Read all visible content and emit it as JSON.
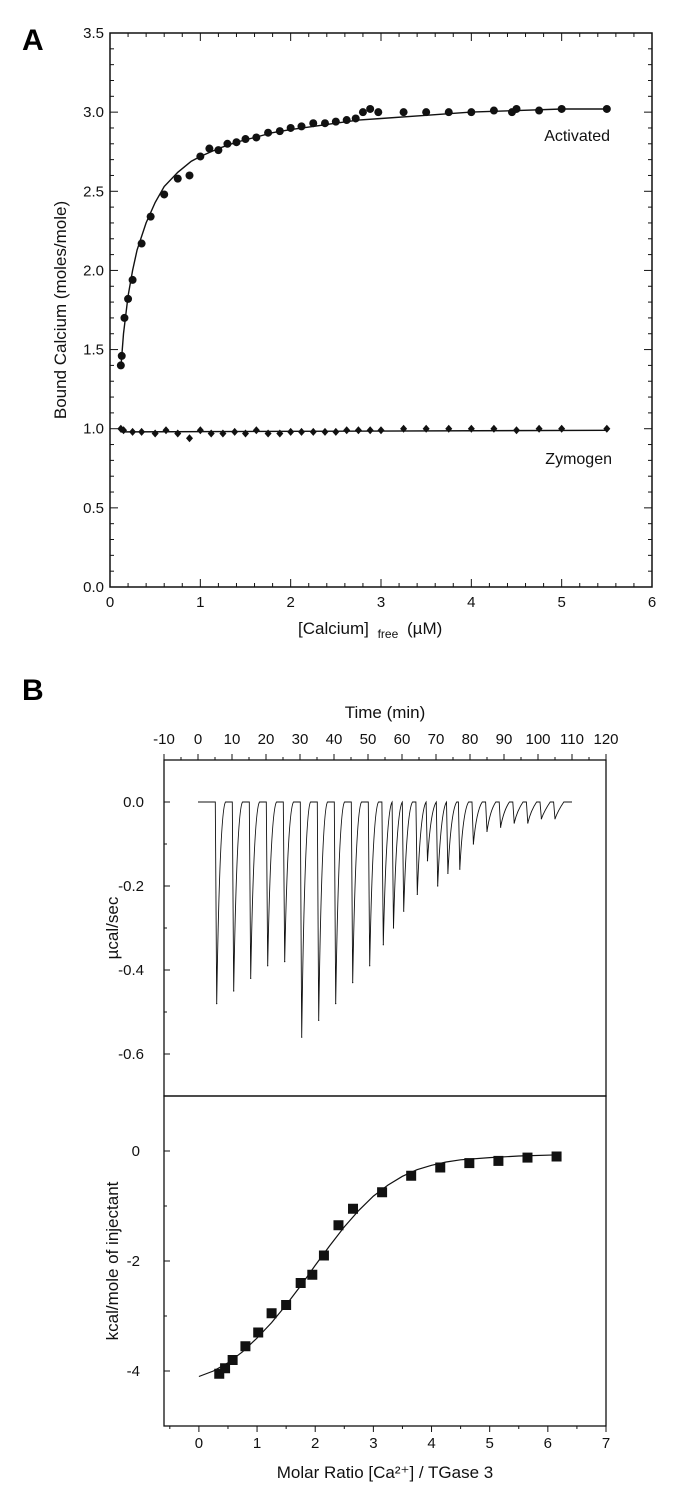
{
  "chart_data": [
    {
      "panel": "A",
      "type": "scatter",
      "xlabel_main": "[Calcium]",
      "xlabel_sub": "free",
      "xlabel_unit": "(µM)",
      "ylabel": "Bound Calcium (moles/mole)",
      "xlim": [
        0,
        6
      ],
      "ylim": [
        0,
        3.5
      ],
      "xticks": [
        "0",
        "1",
        "2",
        "3",
        "4",
        "5",
        "6"
      ],
      "yticks": [
        "0.0",
        "0.5",
        "1.0",
        "1.5",
        "2.0",
        "2.5",
        "3.0",
        "3.5"
      ],
      "series": [
        {
          "name": "Activated",
          "marker": "circle",
          "x": [
            0.12,
            0.13,
            0.16,
            0.2,
            0.25,
            0.35,
            0.45,
            0.6,
            0.75,
            0.88,
            1.0,
            1.1,
            1.2,
            1.3,
            1.4,
            1.5,
            1.62,
            1.75,
            1.88,
            2.0,
            2.12,
            2.25,
            2.38,
            2.5,
            2.62,
            2.72,
            2.8,
            2.88,
            2.97,
            3.25,
            3.5,
            3.75,
            4.0,
            4.25,
            4.45,
            4.5,
            4.75,
            5.0,
            5.5
          ],
          "y": [
            1.4,
            1.46,
            1.7,
            1.82,
            1.94,
            2.17,
            2.34,
            2.48,
            2.58,
            2.6,
            2.72,
            2.77,
            2.76,
            2.8,
            2.81,
            2.83,
            2.84,
            2.87,
            2.88,
            2.9,
            2.91,
            2.93,
            2.93,
            2.94,
            2.95,
            2.96,
            3.0,
            3.02,
            3.0,
            3.0,
            3.0,
            3.0,
            3.0,
            3.01,
            3.0,
            3.02,
            3.01,
            3.02,
            3.02
          ]
        },
        {
          "name": "Zymogen",
          "marker": "diamond",
          "x": [
            0.12,
            0.15,
            0.25,
            0.35,
            0.5,
            0.62,
            0.75,
            0.88,
            1.0,
            1.12,
            1.25,
            1.38,
            1.5,
            1.62,
            1.75,
            1.88,
            2.0,
            2.12,
            2.25,
            2.38,
            2.5,
            2.62,
            2.75,
            2.88,
            3.0,
            3.25,
            3.5,
            3.75,
            4.0,
            4.25,
            4.5,
            4.75,
            5.0,
            5.5
          ],
          "y": [
            1.0,
            0.99,
            0.98,
            0.98,
            0.97,
            0.99,
            0.97,
            0.94,
            0.99,
            0.97,
            0.97,
            0.98,
            0.97,
            0.99,
            0.97,
            0.97,
            0.98,
            0.98,
            0.98,
            0.98,
            0.98,
            0.99,
            0.99,
            0.99,
            0.99,
            1.0,
            1.0,
            1.0,
            1.0,
            1.0,
            0.99,
            1.0,
            1.0,
            1.0
          ]
        }
      ],
      "fit_curves": [
        {
          "for": "Activated",
          "x": [
            0.12,
            0.15,
            0.2,
            0.25,
            0.3,
            0.4,
            0.5,
            0.6,
            0.75,
            0.9,
            1.0,
            1.2,
            1.4,
            1.6,
            1.8,
            2.0,
            2.25,
            2.5,
            2.75,
            3.0,
            3.5,
            4.0,
            4.5,
            5.0,
            5.5
          ],
          "y": [
            1.38,
            1.6,
            1.84,
            2.0,
            2.13,
            2.3,
            2.43,
            2.53,
            2.62,
            2.69,
            2.72,
            2.77,
            2.81,
            2.84,
            2.87,
            2.89,
            2.91,
            2.93,
            2.95,
            2.96,
            2.98,
            3.0,
            3.01,
            3.02,
            3.02
          ]
        },
        {
          "for": "Zymogen",
          "x": [
            0.12,
            5.5
          ],
          "y": [
            0.98,
            0.99
          ]
        }
      ]
    },
    {
      "panel": "B",
      "type": "line",
      "subplot": "raw-heat",
      "x_top_label": "Time (min)",
      "ylabel": "µcal/sec",
      "xlim": [
        -10,
        120
      ],
      "ylim": [
        -0.7,
        0.1
      ],
      "xticks": [
        "-10",
        "0",
        "10",
        "20",
        "30",
        "40",
        "50",
        "60",
        "70",
        "80",
        "90",
        "100",
        "110",
        "120"
      ],
      "yticks": [
        "0.0",
        "-0.2",
        "-0.4",
        "-0.6"
      ],
      "baseline": 0.0,
      "peaks": {
        "time": [
          5.5,
          10.5,
          15.5,
          20.5,
          25.5,
          30.5,
          35.5,
          40.5,
          45.5,
          50.5,
          54.5,
          57.5,
          60.5,
          64.5,
          67.5,
          70.5,
          73.5,
          77,
          81,
          85,
          89,
          93,
          97,
          101,
          105
        ],
        "depth": [
          -0.48,
          -0.45,
          -0.42,
          -0.39,
          -0.38,
          -0.56,
          -0.52,
          -0.48,
          -0.43,
          -0.39,
          -0.34,
          -0.3,
          -0.26,
          -0.22,
          -0.14,
          -0.2,
          -0.17,
          -0.16,
          -0.1,
          -0.07,
          -0.06,
          -0.05,
          -0.05,
          -0.04,
          -0.04
        ]
      }
    },
    {
      "panel": "B",
      "type": "scatter",
      "subplot": "integrated-heat",
      "xlabel": "Molar Ratio [Ca²⁺] / TGase 3",
      "ylabel": "kcal/mole of injectant",
      "xlim": [
        -0.6,
        7
      ],
      "ylim": [
        -5,
        1
      ],
      "xticks": [
        "0",
        "1",
        "2",
        "3",
        "4",
        "5",
        "6",
        "7"
      ],
      "yticks": [
        "0",
        "-2",
        "-4"
      ],
      "series": [
        {
          "name": "",
          "marker": "square",
          "x": [
            0.35,
            0.45,
            0.58,
            0.8,
            1.02,
            1.25,
            1.5,
            1.75,
            1.95,
            2.15,
            2.4,
            2.65,
            3.15,
            3.65,
            4.15,
            4.65,
            5.15,
            5.65,
            6.15
          ],
          "y": [
            -4.05,
            -3.95,
            -3.8,
            -3.55,
            -3.3,
            -2.95,
            -2.8,
            -2.4,
            -2.25,
            -1.9,
            -1.35,
            -1.05,
            -0.75,
            -0.45,
            -0.3,
            -0.22,
            -0.18,
            -0.12,
            -0.1
          ]
        }
      ],
      "fit_curve": {
        "x": [
          0.0,
          0.25,
          0.5,
          0.75,
          1.0,
          1.25,
          1.5,
          1.75,
          2.0,
          2.25,
          2.5,
          2.75,
          3.0,
          3.25,
          3.5,
          3.75,
          4.0,
          4.25,
          4.5,
          5.0,
          5.5,
          6.2
        ],
        "y": [
          -4.1,
          -4.0,
          -3.85,
          -3.65,
          -3.4,
          -3.12,
          -2.8,
          -2.45,
          -2.08,
          -1.72,
          -1.38,
          -1.08,
          -0.82,
          -0.62,
          -0.46,
          -0.34,
          -0.26,
          -0.2,
          -0.16,
          -0.12,
          -0.09,
          -0.07
        ]
      }
    }
  ],
  "labels": {
    "panel_a": "A",
    "panel_b": "B"
  }
}
